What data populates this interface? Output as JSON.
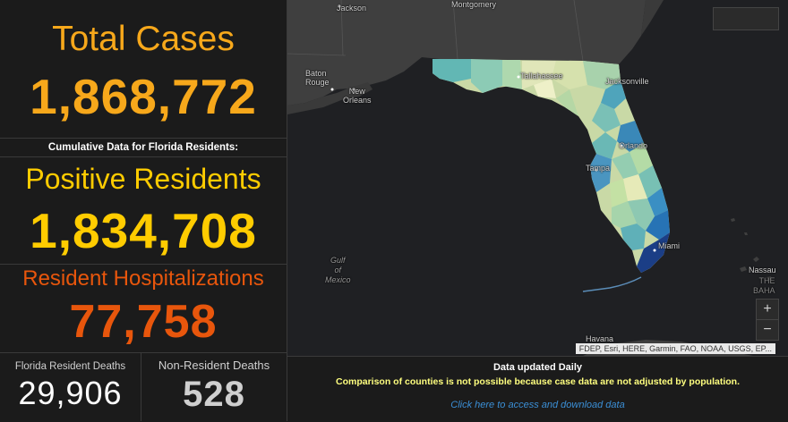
{
  "colors": {
    "orange": "#f7a81b",
    "yellow": "#ffcc00",
    "red_orange": "#e8560c",
    "white": "#ffffff",
    "gray": "#cfcfcf"
  },
  "total_cases": {
    "title": "Total Cases",
    "value": "1,868,772"
  },
  "cumulative_header": "Cumulative Data for Florida Residents:",
  "positive_residents": {
    "title": "Positive Residents",
    "value": "1,834,708"
  },
  "hospitalizations": {
    "title": "Resident Hospitalizations",
    "value": "77,758"
  },
  "resident_deaths": {
    "title": "Florida Resident Deaths",
    "value": "29,906"
  },
  "nonresident_deaths": {
    "title": "Non-Resident Deaths",
    "value": "528"
  },
  "map": {
    "labels": {
      "jackson": "Jackson",
      "montgomery": "Montgomery",
      "baton_rouge": "Baton\nRouge",
      "new_orleans": "New\nOrleans",
      "tallahassee": "Tallahassee",
      "jacksonville": "Jacksonville",
      "orlando": "Orlando",
      "tampa": "Tampa",
      "miami": "Miami",
      "gulf": "Gulf\nof\nMexico",
      "nassau": "Nassau",
      "bahamas": "THE\nBAHA",
      "havana": "Havana"
    },
    "toolbar": {
      "home": "home-icon",
      "list": "list-icon",
      "grid": "grid-icon"
    },
    "zoom_in": "+",
    "zoom_out": "−",
    "attribution": "FDEP, Esri, HERE, Garmin, FAO, NOAA, USGS, EP..."
  },
  "footer": {
    "updated": "Data updated Daily",
    "comparison": "Comparison of counties is not possible because case data are not adjusted by population.",
    "link": "Click here to access and download data"
  }
}
